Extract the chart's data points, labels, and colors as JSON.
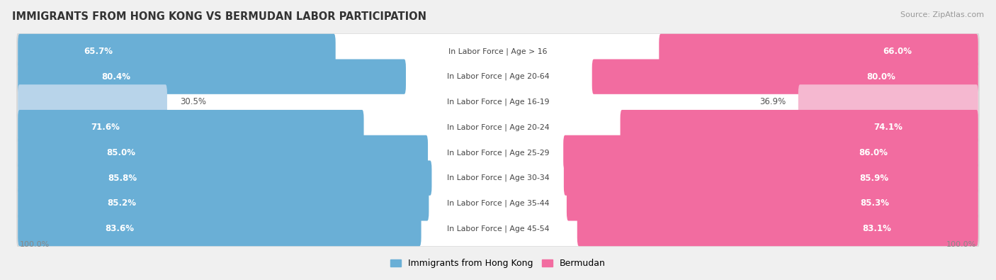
{
  "title": "IMMIGRANTS FROM HONG KONG VS BERMUDAN LABOR PARTICIPATION",
  "source": "Source: ZipAtlas.com",
  "categories": [
    "In Labor Force | Age > 16",
    "In Labor Force | Age 20-64",
    "In Labor Force | Age 16-19",
    "In Labor Force | Age 20-24",
    "In Labor Force | Age 25-29",
    "In Labor Force | Age 30-34",
    "In Labor Force | Age 35-44",
    "In Labor Force | Age 45-54"
  ],
  "hk_values": [
    65.7,
    80.4,
    30.5,
    71.6,
    85.0,
    85.8,
    85.2,
    83.6
  ],
  "bm_values": [
    66.0,
    80.0,
    36.9,
    74.1,
    86.0,
    85.9,
    85.3,
    83.1
  ],
  "hk_color_strong": "#6aafd6",
  "hk_color_weak": "#b8d4ea",
  "bm_color_strong": "#f26ca0",
  "bm_color_weak": "#f5b8d0",
  "bg_color": "#f0f0f0",
  "row_bg_color": "#ffffff",
  "row_shadow_color": "#d8d8d8",
  "center_bg": "#ffffff",
  "legend_hk": "Immigrants from Hong Kong",
  "legend_bm": "Bermudan",
  "max_value": 100.0,
  "threshold": 50.0
}
